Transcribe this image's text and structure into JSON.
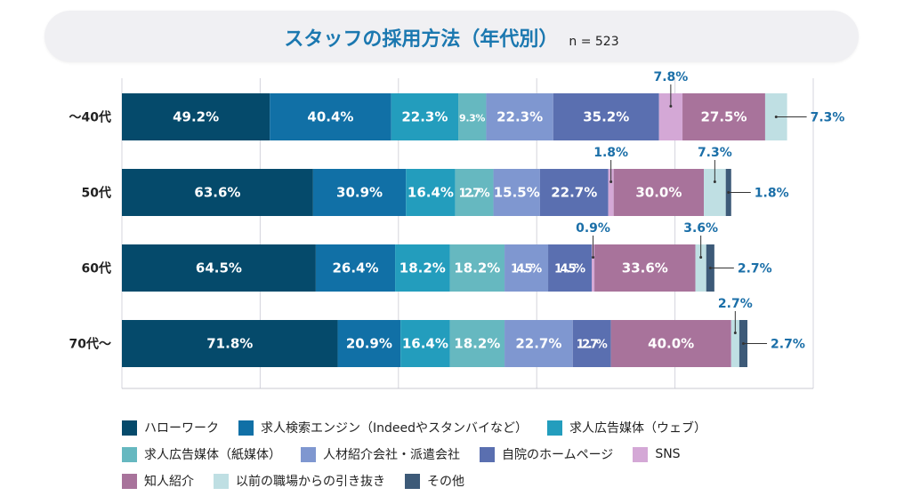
{
  "chart_data": {
    "type": "bar",
    "orientation": "horizontal",
    "stacked": true,
    "title": "スタッフの採用方法（年代別）",
    "sample_size": "n = 523",
    "xlim": [
      0,
      230
    ],
    "grid": true,
    "legend_placement": "bottom",
    "categories": [
      "～40代",
      "50代",
      "60代",
      "70代～"
    ],
    "series": [
      {
        "name": "ハローワーク",
        "color": "#054a6b",
        "values": [
          49.2,
          63.6,
          64.5,
          71.8
        ]
      },
      {
        "name": "求人検索エンジン（Indeedやスタンバイなど）",
        "color": "#1170a6",
        "values": [
          40.4,
          30.9,
          26.4,
          20.9
        ]
      },
      {
        "name": "求人広告媒体（ウェブ）",
        "color": "#239dbd",
        "values": [
          22.3,
          16.4,
          18.2,
          16.4
        ]
      },
      {
        "name": "求人広告媒体（紙媒体）",
        "color": "#66b8c0",
        "values": [
          9.3,
          12.7,
          18.2,
          18.2
        ]
      },
      {
        "name": "人材紹介会社・派遣会社",
        "color": "#7f97d0",
        "values": [
          22.3,
          15.5,
          14.5,
          22.7
        ]
      },
      {
        "name": "自院のホームページ",
        "color": "#5a6fb0",
        "values": [
          35.2,
          22.7,
          14.5,
          12.7
        ]
      },
      {
        "name": "SNS",
        "color": "#d4a8d6",
        "values": [
          7.8,
          1.8,
          0.9,
          0
        ]
      },
      {
        "name": "知人紹介",
        "color": "#a8739b",
        "values": [
          27.5,
          30.0,
          33.6,
          40.0
        ]
      },
      {
        "name": "以前の職場からの引き抜き",
        "color": "#bfdfe3",
        "values": [
          7.3,
          7.3,
          3.6,
          2.7
        ]
      },
      {
        "name": "その他",
        "color": "#3d5a78",
        "values": [
          0,
          1.8,
          2.7,
          2.7
        ]
      }
    ],
    "label_color_outside": "#1b6fa8"
  }
}
